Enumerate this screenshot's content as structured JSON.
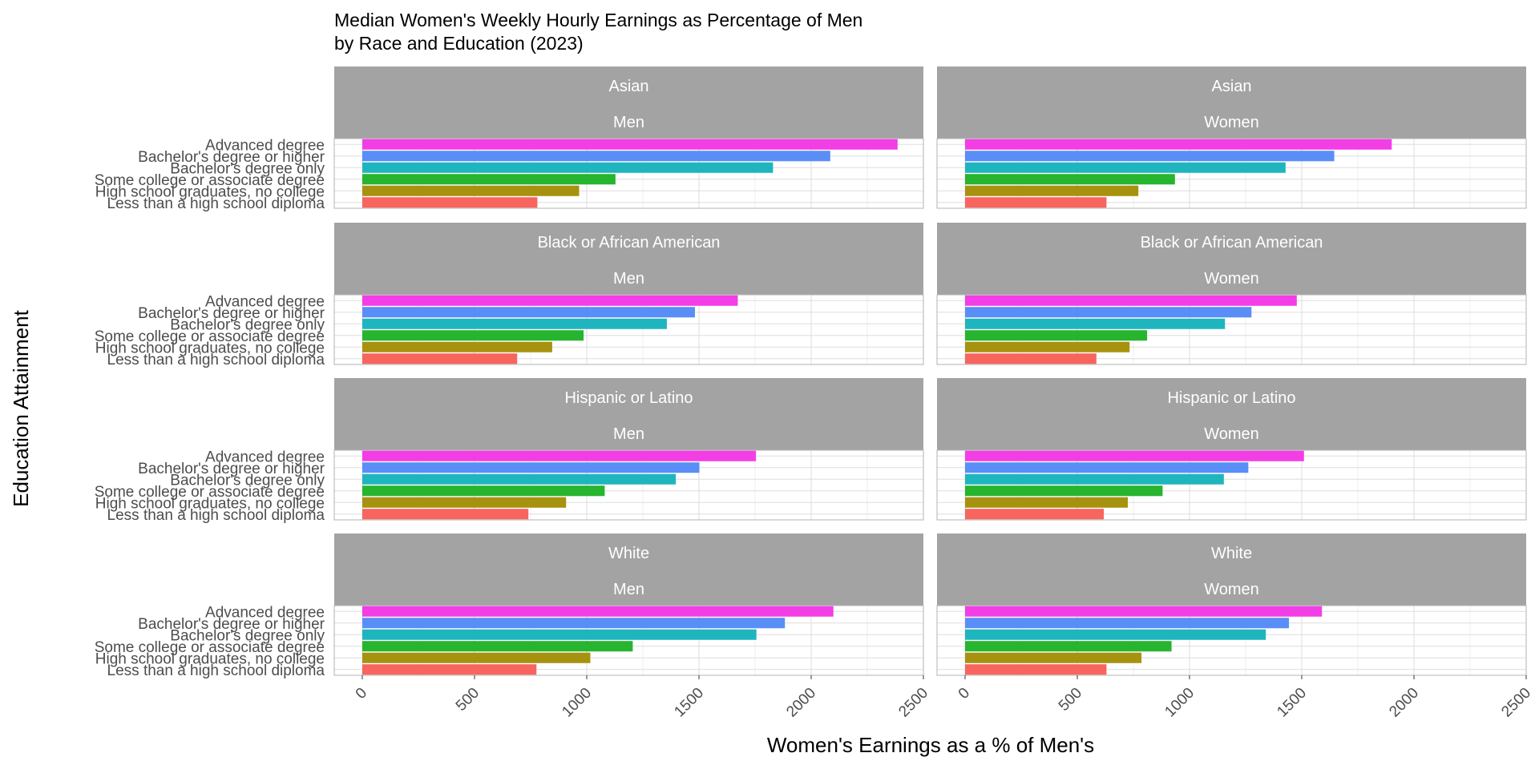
{
  "chart_data": {
    "type": "bar",
    "orientation": "horizontal",
    "title_lines": [
      "Median Women's Weekly Hourly Earnings as Percentage of Men",
      "by Race and Education (2023)"
    ],
    "xlabel": "Women's Earnings as a % of Men's",
    "ylabel": "Education Attainment",
    "xlim": [
      -125,
      2500
    ],
    "x_ticks": [
      "0",
      "500",
      "1000",
      "1500",
      "2000",
      "2500"
    ],
    "grid": true,
    "legend": "none",
    "categories": [
      "Advanced degree",
      "Bachelor's degree or higher",
      "Bachelor's degree only",
      "Some college or associate degree",
      "High school graduates, no college",
      "Less than a high school diploma"
    ],
    "category_colors": [
      "#f33ee6",
      "#5a8ef7",
      "#1fb5bf",
      "#27b42e",
      "#a6920f",
      "#f8645e"
    ],
    "panels": [
      {
        "race": "Asian",
        "sex": "Men",
        "values": [
          2385,
          2085,
          1830,
          1128,
          966,
          780
        ]
      },
      {
        "race": "Asian",
        "sex": "Women",
        "values": [
          1901,
          1645,
          1428,
          935,
          772,
          630
        ]
      },
      {
        "race": "Black or African American",
        "sex": "Men",
        "values": [
          1673,
          1482,
          1357,
          986,
          846,
          690
        ]
      },
      {
        "race": "Black or African American",
        "sex": "Women",
        "values": [
          1478,
          1276,
          1158,
          811,
          733,
          585
        ]
      },
      {
        "race": "Hispanic or Latino",
        "sex": "Men",
        "values": [
          1754,
          1502,
          1397,
          1080,
          908,
          740
        ]
      },
      {
        "race": "Hispanic or Latino",
        "sex": "Women",
        "values": [
          1510,
          1262,
          1153,
          880,
          725,
          618
        ]
      },
      {
        "race": "White",
        "sex": "Men",
        "values": [
          2099,
          1883,
          1756,
          1205,
          1016,
          776
        ]
      },
      {
        "race": "White",
        "sex": "Women",
        "values": [
          1590,
          1443,
          1340,
          920,
          786,
          630
        ]
      }
    ]
  }
}
